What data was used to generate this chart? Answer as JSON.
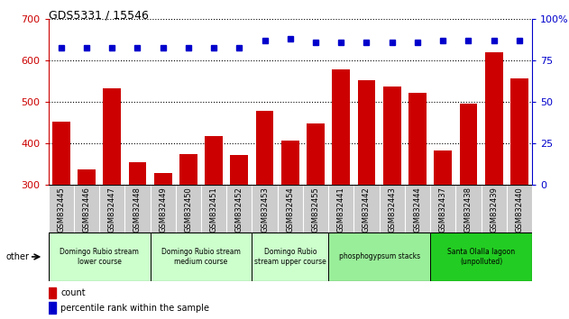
{
  "title": "GDS5331 / 15546",
  "samples": [
    "GSM832445",
    "GSM832446",
    "GSM832447",
    "GSM832448",
    "GSM832449",
    "GSM832450",
    "GSM832451",
    "GSM832452",
    "GSM832453",
    "GSM832454",
    "GSM832455",
    "GSM832441",
    "GSM832442",
    "GSM832443",
    "GSM832444",
    "GSM832437",
    "GSM832438",
    "GSM832439",
    "GSM832440"
  ],
  "counts": [
    453,
    337,
    533,
    354,
    328,
    375,
    418,
    372,
    478,
    408,
    448,
    578,
    552,
    538,
    522,
    383,
    497,
    620,
    558
  ],
  "percentiles": [
    83,
    83,
    83,
    83,
    83,
    83,
    83,
    83,
    87,
    88,
    86,
    86,
    86,
    86,
    86,
    87,
    87,
    87,
    87
  ],
  "bar_color": "#cc0000",
  "dot_color": "#0000cc",
  "ylim_left": [
    300,
    700
  ],
  "ylim_right": [
    0,
    100
  ],
  "yticks_left": [
    300,
    400,
    500,
    600,
    700
  ],
  "yticks_right": [
    0,
    25,
    50,
    75,
    100
  ],
  "groups": [
    {
      "label": "Domingo Rubio stream\nlower course",
      "start": 0,
      "end": 4,
      "color": "#ccffcc"
    },
    {
      "label": "Domingo Rubio stream\nmedium course",
      "start": 4,
      "end": 8,
      "color": "#ccffcc"
    },
    {
      "label": "Domingo Rubio\nstream upper course",
      "start": 8,
      "end": 11,
      "color": "#ccffcc"
    },
    {
      "label": "phosphogypsum stacks",
      "start": 11,
      "end": 15,
      "color": "#99ee99"
    },
    {
      "label": "Santa Olalla lagoon\n(unpolluted)",
      "start": 15,
      "end": 19,
      "color": "#22cc22"
    }
  ],
  "group_colors": [
    "#ccffcc",
    "#ccffcc",
    "#ccffcc",
    "#99ee99",
    "#22cc22"
  ],
  "legend_count_color": "#cc0000",
  "legend_dot_color": "#0000cc",
  "xtick_bg": "#cccccc",
  "fig_bg": "#ffffff"
}
